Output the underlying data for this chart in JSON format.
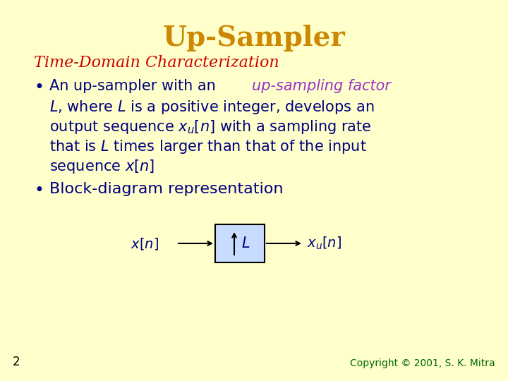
{
  "title": "Up-Sampler",
  "title_color": "#CC8800",
  "title_fontsize": 28,
  "bg_color": "#FFFFCC",
  "subtitle": "Time-Domain Characterization",
  "subtitle_color": "#CC0000",
  "subtitle_fontsize": 16,
  "bullet_color": "#000080",
  "bullet_fontsize": 15,
  "purple_color": "#9933CC",
  "blue_color": "#000080",
  "box_color": "#C8DCFF",
  "copyright_text": "Copyright © 2001, S. K. Mitra",
  "copyright_color": "#006600",
  "copyright_fontsize": 10,
  "page_number": "2",
  "page_color": "#000000",
  "page_fontsize": 12
}
